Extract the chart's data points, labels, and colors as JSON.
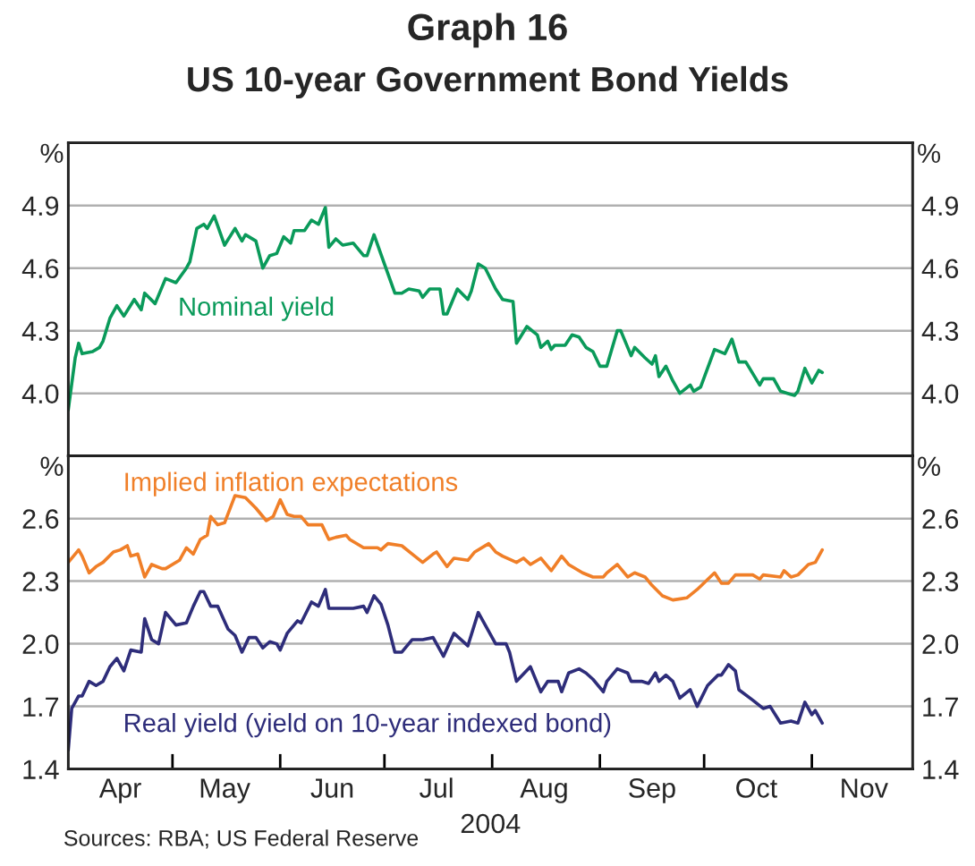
{
  "chart_data": [
    {
      "type": "line",
      "title": "Graph 16",
      "subtitle": "US 10-year Government Bond Yields",
      "ylabel": "%",
      "y2label": "%",
      "xlim": [
        "2004-04-01",
        "2004-11-30"
      ],
      "ylim": [
        3.7,
        5.2
      ],
      "yticks": [
        {
          "value": 4,
          "label": "4.0"
        },
        4.3,
        4.6,
        4.9
      ],
      "y2lim": [
        3.7,
        5.2
      ],
      "y2ticks": [
        {
          "value": 4,
          "label": "4.0"
        },
        4.3,
        4.6,
        4.9
      ],
      "grid": "y",
      "legend": false,
      "tick_labels": "y",
      "series": [
        {
          "name": "Nominal yield",
          "color": "#0a9a5a",
          "x": [
            "2004-04-01",
            "2004-04-03",
            "2004-04-04",
            "2004-04-05",
            "2004-04-08",
            "2004-04-10",
            "2004-04-11",
            "2004-04-13",
            "2004-04-15",
            "2004-04-17",
            "2004-04-20",
            "2004-04-22",
            "2004-04-23",
            "2004-04-26",
            "2004-04-29",
            "2004-05-02",
            "2004-05-05",
            "2004-05-06",
            "2004-05-08",
            "2004-05-10",
            "2004-05-11",
            "2004-05-13",
            "2004-05-16",
            "2004-05-19",
            "2004-05-21",
            "2004-05-22",
            "2004-05-25",
            "2004-05-27",
            "2004-05-29",
            "2004-05-31",
            "2004-06-02",
            "2004-06-04",
            "2004-06-05",
            "2004-06-08",
            "2004-06-10",
            "2004-06-12",
            "2004-06-14",
            "2004-06-15",
            "2004-06-17",
            "2004-06-19",
            "2004-06-22",
            "2004-06-25",
            "2004-06-26",
            "2004-06-28",
            "2004-07-01",
            "2004-07-04",
            "2004-07-06",
            "2004-07-08",
            "2004-07-11",
            "2004-07-12",
            "2004-07-14",
            "2004-07-17",
            "2004-07-18",
            "2004-07-19",
            "2004-07-22",
            "2004-07-25",
            "2004-07-26",
            "2004-07-28",
            "2004-07-30",
            "2004-08-02",
            "2004-08-04",
            "2004-08-07",
            "2004-08-08",
            "2004-08-11",
            "2004-08-14",
            "2004-08-15",
            "2004-08-17",
            "2004-08-18",
            "2004-08-19",
            "2004-08-22",
            "2004-08-24",
            "2004-08-26",
            "2004-08-28",
            "2004-08-30",
            "2004-09-01",
            "2004-09-03",
            "2004-09-06",
            "2004-09-07",
            "2004-09-10",
            "2004-09-11",
            "2004-09-14",
            "2004-09-16",
            "2004-09-17",
            "2004-09-18",
            "2004-09-20",
            "2004-09-22",
            "2004-09-24",
            "2004-09-27",
            "2004-09-28",
            "2004-09-30",
            "2004-10-04",
            "2004-10-07",
            "2004-10-09",
            "2004-10-11",
            "2004-10-13",
            "2004-10-17",
            "2004-10-18",
            "2004-10-21",
            "2004-10-23",
            "2004-10-25",
            "2004-10-27",
            "2004-10-28",
            "2004-10-30",
            "2004-11-01",
            "2004-11-03",
            "2004-11-04"
          ],
          "values": [
            3.92,
            4.17,
            4.24,
            4.19,
            4.2,
            4.22,
            4.25,
            4.36,
            4.42,
            4.37,
            4.45,
            4.4,
            4.48,
            4.43,
            4.55,
            4.53,
            4.6,
            4.63,
            4.79,
            4.81,
            4.79,
            4.85,
            4.71,
            4.79,
            4.73,
            4.76,
            4.73,
            4.6,
            4.66,
            4.67,
            4.75,
            4.72,
            4.78,
            4.78,
            4.83,
            4.81,
            4.89,
            4.7,
            4.74,
            4.71,
            4.72,
            4.66,
            4.66,
            4.76,
            4.62,
            4.48,
            4.48,
            4.5,
            4.49,
            4.46,
            4.5,
            4.5,
            4.38,
            4.38,
            4.5,
            4.45,
            4.49,
            4.62,
            4.6,
            4.5,
            4.45,
            4.44,
            4.24,
            4.32,
            4.28,
            4.22,
            4.25,
            4.21,
            4.23,
            4.23,
            4.28,
            4.27,
            4.22,
            4.2,
            4.13,
            4.13,
            4.3,
            4.3,
            4.18,
            4.22,
            4.17,
            4.14,
            4.18,
            4.08,
            4.13,
            4.06,
            4.0,
            4.04,
            4.01,
            4.03,
            4.21,
            4.19,
            4.26,
            4.15,
            4.15,
            4.04,
            4.07,
            4.07,
            4.01,
            4.0,
            3.99,
            4.01,
            4.12,
            4.05,
            4.11,
            4.1
          ]
        }
      ]
    },
    {
      "type": "line",
      "xlabel": "2004",
      "ylabel": "%",
      "y2label": "%",
      "xlim": [
        "2004-04-01",
        "2004-11-30"
      ],
      "xticks": [
        {
          "value": "2004-04-16",
          "label": "Apr"
        },
        {
          "value": "2004-05-01",
          "label": null
        },
        {
          "value": "2004-05-16",
          "label": "May"
        },
        {
          "value": "2004-06-01",
          "label": null
        },
        {
          "value": "2004-06-16",
          "label": "Jun"
        },
        {
          "value": "2004-07-01",
          "label": null
        },
        {
          "value": "2004-07-16",
          "label": "Jul"
        },
        {
          "value": "2004-08-01",
          "label": null
        },
        {
          "value": "2004-08-16",
          "label": "Aug"
        },
        {
          "value": "2004-09-01",
          "label": null
        },
        {
          "value": "2004-09-16",
          "label": "Sep"
        },
        {
          "value": "2004-10-01",
          "label": null
        },
        {
          "value": "2004-10-16",
          "label": "Oct"
        },
        {
          "value": "2004-11-01",
          "label": null
        },
        {
          "value": "2004-11-16",
          "label": "Nov"
        }
      ],
      "ylim": [
        1.4,
        2.9
      ],
      "yticks": [
        1.4,
        1.7,
        {
          "value": 2,
          "label": "2.0"
        },
        2.3,
        2.6
      ],
      "y2lim": [
        1.4,
        2.9
      ],
      "y2ticks": [
        1.4,
        1.7,
        {
          "value": 2,
          "label": "2.0"
        },
        2.3,
        2.6
      ],
      "grid": "y",
      "legend": false,
      "annotations": [
        "Sources: RBA; US Federal Reserve"
      ],
      "series": [
        {
          "name": "Implied inflation expectations",
          "color": "#f07f28",
          "x": [
            "2004-04-01",
            "2004-04-04",
            "2004-04-05",
            "2004-04-07",
            "2004-04-09",
            "2004-04-11",
            "2004-04-14",
            "2004-04-16",
            "2004-04-18",
            "2004-04-19",
            "2004-04-21",
            "2004-04-23",
            "2004-04-25",
            "2004-04-28",
            "2004-04-29",
            "2004-05-03",
            "2004-05-05",
            "2004-05-07",
            "2004-05-09",
            "2004-05-11",
            "2004-05-12",
            "2004-05-14",
            "2004-05-16",
            "2004-05-19",
            "2004-05-22",
            "2004-05-25",
            "2004-05-28",
            "2004-05-30",
            "2004-06-01",
            "2004-06-03",
            "2004-06-05",
            "2004-06-07",
            "2004-06-09",
            "2004-06-13",
            "2004-06-15",
            "2004-06-17",
            "2004-06-20",
            "2004-06-21",
            "2004-06-25",
            "2004-06-29",
            "2004-06-30",
            "2004-07-02",
            "2004-07-06",
            "2004-07-09",
            "2004-07-12",
            "2004-07-15",
            "2004-07-16",
            "2004-07-19",
            "2004-07-21",
            "2004-07-25",
            "2004-07-27",
            "2004-07-31",
            "2004-08-02",
            "2004-08-04",
            "2004-08-08",
            "2004-08-10",
            "2004-08-12",
            "2004-08-15",
            "2004-08-18",
            "2004-08-21",
            "2004-08-23",
            "2004-08-27",
            "2004-08-30",
            "2004-09-02",
            "2004-09-03",
            "2004-09-06",
            "2004-09-09",
            "2004-09-11",
            "2004-09-14",
            "2004-09-16",
            "2004-09-19",
            "2004-09-22",
            "2004-09-26",
            "2004-09-29",
            "2004-10-04",
            "2004-10-06",
            "2004-10-08",
            "2004-10-10",
            "2004-10-15",
            "2004-10-17",
            "2004-10-18",
            "2004-10-23",
            "2004-10-24",
            "2004-10-26",
            "2004-10-28",
            "2004-10-31",
            "2004-11-02",
            "2004-11-04"
          ],
          "values": [
            2.39,
            2.45,
            2.42,
            2.34,
            2.37,
            2.39,
            2.44,
            2.45,
            2.47,
            2.42,
            2.43,
            2.32,
            2.38,
            2.36,
            2.36,
            2.4,
            2.46,
            2.43,
            2.5,
            2.52,
            2.61,
            2.57,
            2.58,
            2.71,
            2.7,
            2.65,
            2.59,
            2.61,
            2.69,
            2.62,
            2.61,
            2.61,
            2.57,
            2.57,
            2.5,
            2.51,
            2.52,
            2.5,
            2.46,
            2.46,
            2.45,
            2.48,
            2.47,
            2.43,
            2.39,
            2.43,
            2.44,
            2.37,
            2.41,
            2.4,
            2.44,
            2.48,
            2.44,
            2.42,
            2.39,
            2.41,
            2.38,
            2.41,
            2.35,
            2.42,
            2.38,
            2.34,
            2.32,
            2.32,
            2.34,
            2.38,
            2.32,
            2.34,
            2.32,
            2.28,
            2.23,
            2.21,
            2.22,
            2.26,
            2.34,
            2.29,
            2.29,
            2.33,
            2.33,
            2.31,
            2.33,
            2.32,
            2.35,
            2.32,
            2.33,
            2.38,
            2.39,
            2.45
          ]
        },
        {
          "name": "Real yield (yield on 10-year indexed bond)",
          "color": "#2e2d7a",
          "x": [
            "2004-04-01",
            "2004-04-02",
            "2004-04-04",
            "2004-04-05",
            "2004-04-07",
            "2004-04-09",
            "2004-04-11",
            "2004-04-13",
            "2004-04-15",
            "2004-04-17",
            "2004-04-19",
            "2004-04-22",
            "2004-04-23",
            "2004-04-25",
            "2004-04-27",
            "2004-04-29",
            "2004-05-02",
            "2004-05-05",
            "2004-05-07",
            "2004-05-09",
            "2004-05-10",
            "2004-05-12",
            "2004-05-14",
            "2004-05-17",
            "2004-05-19",
            "2004-05-21",
            "2004-05-23",
            "2004-05-25",
            "2004-05-27",
            "2004-05-29",
            "2004-05-31",
            "2004-06-01",
            "2004-06-03",
            "2004-06-06",
            "2004-06-07",
            "2004-06-10",
            "2004-06-12",
            "2004-06-14",
            "2004-06-15",
            "2004-06-19",
            "2004-06-22",
            "2004-06-25",
            "2004-06-26",
            "2004-06-28",
            "2004-06-30",
            "2004-07-02",
            "2004-07-04",
            "2004-07-06",
            "2004-07-09",
            "2004-07-12",
            "2004-07-15",
            "2004-07-16",
            "2004-07-18",
            "2004-07-21",
            "2004-07-25",
            "2004-07-28",
            "2004-07-30",
            "2004-08-02",
            "2004-08-05",
            "2004-08-06",
            "2004-08-08",
            "2004-08-12",
            "2004-08-15",
            "2004-08-17",
            "2004-08-20",
            "2004-08-21",
            "2004-08-23",
            "2004-08-26",
            "2004-08-28",
            "2004-08-30",
            "2004-09-02",
            "2004-09-03",
            "2004-09-06",
            "2004-09-09",
            "2004-09-10",
            "2004-09-13",
            "2004-09-15",
            "2004-09-17",
            "2004-09-18",
            "2004-09-20",
            "2004-09-22",
            "2004-09-24",
            "2004-09-27",
            "2004-09-29",
            "2004-10-02",
            "2004-10-05",
            "2004-10-06",
            "2004-10-08",
            "2004-10-10",
            "2004-10-11",
            "2004-10-15",
            "2004-10-18",
            "2004-10-20",
            "2004-10-23",
            "2004-10-26",
            "2004-10-28",
            "2004-10-30",
            "2004-11-01",
            "2004-11-02",
            "2004-11-04"
          ],
          "values": [
            1.49,
            1.69,
            1.75,
            1.75,
            1.82,
            1.8,
            1.82,
            1.89,
            1.93,
            1.87,
            1.97,
            1.96,
            2.12,
            2.02,
            2.0,
            2.15,
            2.09,
            2.1,
            2.18,
            2.25,
            2.25,
            2.18,
            2.18,
            2.07,
            2.04,
            1.96,
            2.03,
            2.03,
            1.98,
            2.01,
            2.0,
            1.97,
            2.05,
            2.11,
            2.1,
            2.2,
            2.18,
            2.26,
            2.17,
            2.17,
            2.17,
            2.18,
            2.15,
            2.23,
            2.19,
            2.09,
            1.96,
            1.96,
            2.02,
            2.02,
            2.03,
            2.0,
            1.94,
            2.05,
            1.99,
            2.15,
            2.09,
            2.0,
            2.0,
            1.96,
            1.82,
            1.89,
            1.77,
            1.82,
            1.82,
            1.77,
            1.86,
            1.88,
            1.86,
            1.83,
            1.77,
            1.82,
            1.88,
            1.86,
            1.82,
            1.82,
            1.81,
            1.86,
            1.82,
            1.85,
            1.82,
            1.74,
            1.78,
            1.7,
            1.8,
            1.85,
            1.85,
            1.9,
            1.87,
            1.78,
            1.73,
            1.69,
            1.7,
            1.62,
            1.63,
            1.62,
            1.72,
            1.66,
            1.68,
            1.62
          ]
        }
      ]
    }
  ]
}
